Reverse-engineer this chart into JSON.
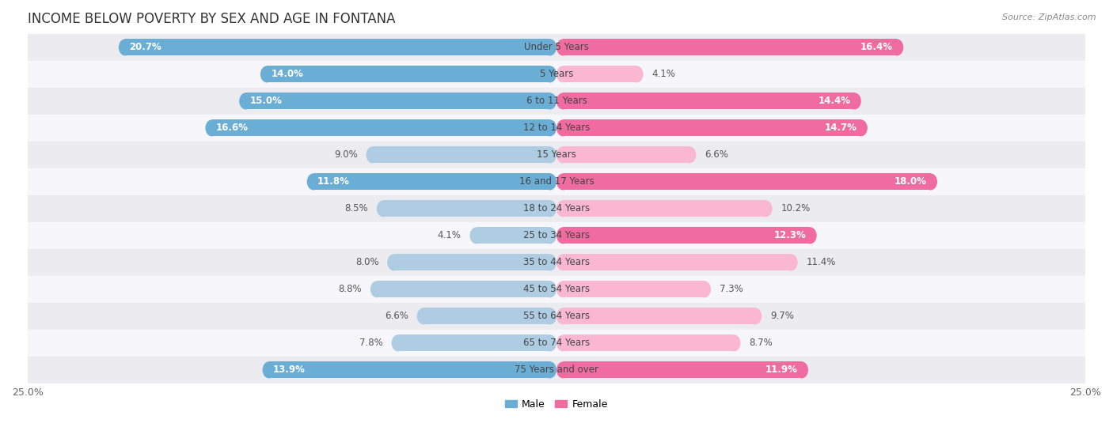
{
  "title": "INCOME BELOW POVERTY BY SEX AND AGE IN FONTANA",
  "source": "Source: ZipAtlas.com",
  "categories": [
    "Under 5 Years",
    "5 Years",
    "6 to 11 Years",
    "12 to 14 Years",
    "15 Years",
    "16 and 17 Years",
    "18 to 24 Years",
    "25 to 34 Years",
    "35 to 44 Years",
    "45 to 54 Years",
    "55 to 64 Years",
    "65 to 74 Years",
    "75 Years and over"
  ],
  "male": [
    20.7,
    14.0,
    15.0,
    16.6,
    9.0,
    11.8,
    8.5,
    4.1,
    8.0,
    8.8,
    6.6,
    7.8,
    13.9
  ],
  "female": [
    16.4,
    4.1,
    14.4,
    14.7,
    6.6,
    18.0,
    10.2,
    12.3,
    11.4,
    7.3,
    9.7,
    8.7,
    11.9
  ],
  "male_color_dark": "#6aadd5",
  "male_color_light": "#aecde3",
  "female_color_dark": "#f06ca0",
  "female_color_light": "#f9b8d0",
  "bg_odd": "#ebebf0",
  "bg_even": "#f7f7fb",
  "xlim": 25.0,
  "legend_male": "Male",
  "legend_female": "Female",
  "title_fontsize": 12,
  "label_fontsize": 8.5,
  "tick_fontsize": 9,
  "inside_threshold_male": 11.5,
  "inside_threshold_female": 11.5
}
